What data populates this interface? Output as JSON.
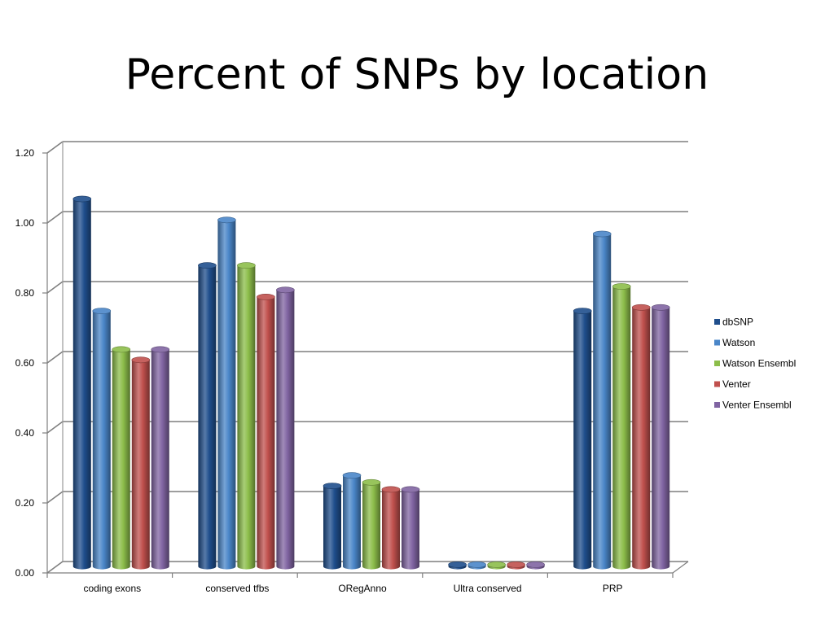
{
  "slide": {
    "title": "Percent of SNPs by location"
  },
  "chart_data": {
    "type": "bar",
    "title": "Percent of SNPs by location",
    "xlabel": "",
    "ylabel": "",
    "ylim": [
      0,
      1.2
    ],
    "yticks": [
      "0.00",
      "0.20",
      "0.40",
      "0.60",
      "0.80",
      "1.00",
      "1.20"
    ],
    "categories": [
      "coding exons",
      "conserved tfbs",
      "ORegAnno",
      "Ultra conserved",
      "PRP"
    ],
    "series": [
      {
        "name": "dbSNP",
        "color": "#1f4e8c",
        "values": [
          1.05,
          0.86,
          0.23,
          0.005,
          0.73
        ]
      },
      {
        "name": "Watson",
        "color": "#4a86c8",
        "values": [
          0.73,
          0.99,
          0.26,
          0.005,
          0.95
        ]
      },
      {
        "name": "Watson Ensembl",
        "color": "#8cbd4a",
        "values": [
          0.62,
          0.86,
          0.24,
          0.005,
          0.8
        ]
      },
      {
        "name": "Venter",
        "color": "#c0504d",
        "values": [
          0.59,
          0.77,
          0.22,
          0.005,
          0.74
        ]
      },
      {
        "name": "Venter Ensembl",
        "color": "#8064a2",
        "values": [
          0.62,
          0.79,
          0.22,
          0.005,
          0.74
        ]
      }
    ],
    "grid": true,
    "legend_position": "right",
    "style": "3d-cylinder"
  }
}
